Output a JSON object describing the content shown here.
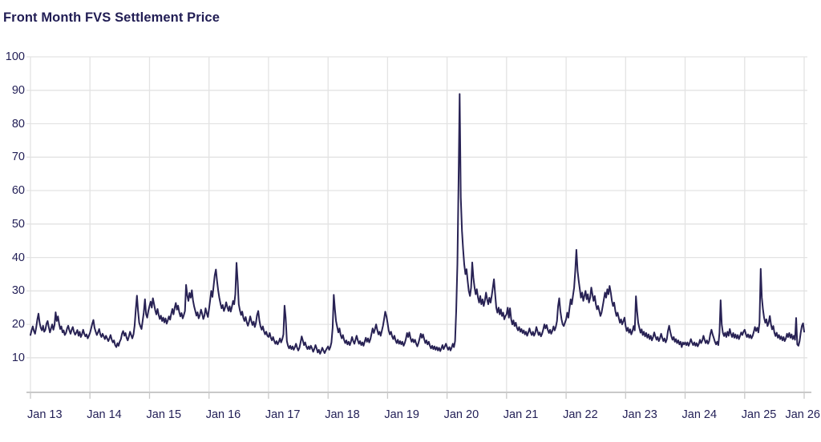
{
  "title": "Front Month FVS Settlement Price",
  "colors": {
    "line": "#282254",
    "text": "#232057",
    "title_text": "#211d54",
    "grid": "#e3e3e3",
    "axis": "#c9c9c9",
    "background": "#ffffff"
  },
  "chart_data": {
    "type": "line",
    "title": "Front Month FVS Settlement Price",
    "xlabel": "",
    "ylabel": "",
    "x_start": "Jan 2013",
    "x_end": "Jan 2026",
    "sampling": "weekly",
    "x_tick_labels": [
      "Jan 13",
      "Jan 14",
      "Jan 15",
      "Jan 16",
      "Jan 17",
      "Jan 18",
      "Jan 19",
      "Jan 20",
      "Jan 21",
      "Jan 22",
      "Jan 23",
      "Jan 24",
      "Jan 25",
      "Jan 26"
    ],
    "y_ticks": [
      10,
      20,
      30,
      40,
      50,
      60,
      70,
      80,
      90,
      100
    ],
    "ylim": [
      0,
      100
    ],
    "grid": true,
    "legend": "none",
    "notable_points": [
      {
        "date": "Oct 2014",
        "value": 28.6
      },
      {
        "date": "Aug 2015",
        "value": 31.8
      },
      {
        "date": "Feb 2016",
        "value": 36.4
      },
      {
        "date": "Jun 2016 (Brexit)",
        "value": 38.4
      },
      {
        "date": "Apr 2017",
        "value": 25.6
      },
      {
        "date": "Feb 2018",
        "value": 28.8
      },
      {
        "date": "Mar 2020 (peak)",
        "value": 88.9
      },
      {
        "date": "Mar 2022",
        "value": 42.3
      },
      {
        "date": "Mar 2023",
        "value": 28.4
      },
      {
        "date": "Aug 2024",
        "value": 27.2
      },
      {
        "date": "Apr 2025",
        "value": 36.6
      }
    ],
    "series": [
      {
        "name": "Front Month FVS Settlement Price",
        "values": [
          16.8,
          18.2,
          19.4,
          18.0,
          17.2,
          19.0,
          21.5,
          23.2,
          20.5,
          19.0,
          18.2,
          19.6,
          17.8,
          18.4,
          20.2,
          21.0,
          19.2,
          17.6,
          18.8,
          20.0,
          18.4,
          19.8,
          23.6,
          21.0,
          22.4,
          20.2,
          18.6,
          19.4,
          17.6,
          18.2,
          16.8,
          17.4,
          18.8,
          19.6,
          18.2,
          17.2,
          18.4,
          19.2,
          17.8,
          16.9,
          17.5,
          18.3,
          16.6,
          17.8,
          16.2,
          17.0,
          18.4,
          17.2,
          16.4,
          17.0,
          15.8,
          16.6,
          17.4,
          18.8,
          20.2,
          21.3,
          19.0,
          17.8,
          16.8,
          17.6,
          18.6,
          17.0,
          16.2,
          17.2,
          16.4,
          15.6,
          16.6,
          15.8,
          15.0,
          15.8,
          16.8,
          15.4,
          14.6,
          15.2,
          13.8,
          13.2,
          14.4,
          13.6,
          14.8,
          15.6,
          17.2,
          18.0,
          16.6,
          17.4,
          16.0,
          15.2,
          16.4,
          17.8,
          16.8,
          15.8,
          17.0,
          19.6,
          24.2,
          28.6,
          24.0,
          20.5,
          19.5,
          18.6,
          21.0,
          23.5,
          27.5,
          23.0,
          22.0,
          24.0,
          25.5,
          26.8,
          25.0,
          27.8,
          26.0,
          24.2,
          23.0,
          24.6,
          22.8,
          21.6,
          22.6,
          21.0,
          22.0,
          20.6,
          21.8,
          20.2,
          21.2,
          22.4,
          21.4,
          23.2,
          24.6,
          23.0,
          25.0,
          26.4,
          24.4,
          25.6,
          23.6,
          22.4,
          23.4,
          21.8,
          22.8,
          24.0,
          31.8,
          28.6,
          27.0,
          29.4,
          28.0,
          30.2,
          27.2,
          25.4,
          24.0,
          22.6,
          23.6,
          21.8,
          22.8,
          24.4,
          23.2,
          21.6,
          22.6,
          24.8,
          23.4,
          22.2,
          24.6,
          27.2,
          30.0,
          28.2,
          31.4,
          34.6,
          36.4,
          33.0,
          30.2,
          28.0,
          26.2,
          24.8,
          25.8,
          24.0,
          25.0,
          26.6,
          25.2,
          24.0,
          25.4,
          23.8,
          25.2,
          27.0,
          26.0,
          29.0,
          38.4,
          33.0,
          26.0,
          24.2,
          22.8,
          23.8,
          22.0,
          21.0,
          22.2,
          20.6,
          19.6,
          20.8,
          22.4,
          21.0,
          19.8,
          20.8,
          19.2,
          20.4,
          22.8,
          24.0,
          21.2,
          19.4,
          18.4,
          19.4,
          18.0,
          17.0,
          17.8,
          16.6,
          16.2,
          17.4,
          16.0,
          15.2,
          16.2,
          15.0,
          14.2,
          15.0,
          14.0,
          14.8,
          15.8,
          14.6,
          15.6,
          17.0,
          25.6,
          22.0,
          15.0,
          13.6,
          12.8,
          13.6,
          12.6,
          13.4,
          12.4,
          13.2,
          14.2,
          13.0,
          12.2,
          13.0,
          14.6,
          16.4,
          15.2,
          13.8,
          14.6,
          13.4,
          12.6,
          13.4,
          12.6,
          13.6,
          12.8,
          11.8,
          12.6,
          13.8,
          12.8,
          11.6,
          12.4,
          11.2,
          12.0,
          13.0,
          12.2,
          11.4,
          12.2,
          12.8,
          13.4,
          12.4,
          13.2,
          14.6,
          19.0,
          28.8,
          24.6,
          21.0,
          19.2,
          17.6,
          18.8,
          16.8,
          15.8,
          16.8,
          15.4,
          14.4,
          15.2,
          14.0,
          14.8,
          13.8,
          14.8,
          16.2,
          15.0,
          14.2,
          15.4,
          16.6,
          15.2,
          14.2,
          15.0,
          13.8,
          14.6,
          13.6,
          14.8,
          16.0,
          14.8,
          15.8,
          14.6,
          15.6,
          17.2,
          18.8,
          17.4,
          18.6,
          20.0,
          18.4,
          17.0,
          17.8,
          16.6,
          18.0,
          19.6,
          21.6,
          23.8,
          22.4,
          20.4,
          18.2,
          17.0,
          17.8,
          16.4,
          15.6,
          16.6,
          15.2,
          14.4,
          15.4,
          14.2,
          15.0,
          14.0,
          14.8,
          13.6,
          14.4,
          15.6,
          17.4,
          16.2,
          17.6,
          16.0,
          14.8,
          15.6,
          14.6,
          15.4,
          14.2,
          13.4,
          14.4,
          15.8,
          17.2,
          16.0,
          17.0,
          15.6,
          14.4,
          15.2,
          14.0,
          14.8,
          13.6,
          12.8,
          13.6,
          12.6,
          13.4,
          12.4,
          13.2,
          12.2,
          13.0,
          12.0,
          12.8,
          13.8,
          12.6,
          13.4,
          14.2,
          13.2,
          12.4,
          13.2,
          12.2,
          13.0,
          14.2,
          13.2,
          15.0,
          24.0,
          38.0,
          62.0,
          88.9,
          58.0,
          48.0,
          42.5,
          38.0,
          35.0,
          36.5,
          33.0,
          30.0,
          28.5,
          31.0,
          38.5,
          34.0,
          31.0,
          29.0,
          30.5,
          28.0,
          26.5,
          28.5,
          26.0,
          27.5,
          25.5,
          27.0,
          29.5,
          27.5,
          26.0,
          28.0,
          26.5,
          28.5,
          31.0,
          33.5,
          29.0,
          25.0,
          23.5,
          25.0,
          23.0,
          24.5,
          22.5,
          23.5,
          21.5,
          22.5,
          23.0,
          25.0,
          22.0,
          24.8,
          21.5,
          20.0,
          21.2,
          19.5,
          20.5,
          19.0,
          18.2,
          19.2,
          17.8,
          18.6,
          17.4,
          18.2,
          17.0,
          17.8,
          16.6,
          17.6,
          18.8,
          17.6,
          16.8,
          17.8,
          16.6,
          17.4,
          19.2,
          18.0,
          16.8,
          17.6,
          16.4,
          17.2,
          18.4,
          20.0,
          18.8,
          19.8,
          18.4,
          17.4,
          18.4,
          17.2,
          18.0,
          19.4,
          18.2,
          19.2,
          21.0,
          25.5,
          27.8,
          24.0,
          21.5,
          20.0,
          19.5,
          20.5,
          21.5,
          23.5,
          22.0,
          25.0,
          27.5,
          26.0,
          28.5,
          31.0,
          36.0,
          42.3,
          36.0,
          33.0,
          30.5,
          28.0,
          29.5,
          27.0,
          28.5,
          30.0,
          27.5,
          29.0,
          26.5,
          28.0,
          31.0,
          29.0,
          27.0,
          28.5,
          26.0,
          24.5,
          25.5,
          24.0,
          22.5,
          23.5,
          25.5,
          27.5,
          29.5,
          28.0,
          30.5,
          29.0,
          31.5,
          29.5,
          27.0,
          25.5,
          26.5,
          24.0,
          22.5,
          23.5,
          22.0,
          20.5,
          21.5,
          20.0,
          21.0,
          22.0,
          19.5,
          18.0,
          19.0,
          17.5,
          18.5,
          17.0,
          18.0,
          19.5,
          18.2,
          28.4,
          24.0,
          20.5,
          19.0,
          17.5,
          18.5,
          16.8,
          17.8,
          16.4,
          17.4,
          16.0,
          17.0,
          15.6,
          16.6,
          15.2,
          16.2,
          17.6,
          16.4,
          15.4,
          16.2,
          15.0,
          15.8,
          17.2,
          16.0,
          15.0,
          15.8,
          14.6,
          15.6,
          18.0,
          19.6,
          17.8,
          16.4,
          15.4,
          16.2,
          14.8,
          15.6,
          14.4,
          15.2,
          14.0,
          14.8,
          13.2,
          14.6,
          14.0,
          14.6,
          13.8,
          14.6,
          13.6,
          14.4,
          15.6,
          14.6,
          13.8,
          14.6,
          13.6,
          14.4,
          13.4,
          14.2,
          15.4,
          14.4,
          15.2,
          16.6,
          15.4,
          14.4,
          15.2,
          14.2,
          15.0,
          17.0,
          18.4,
          17.0,
          16.0,
          14.8,
          14.0,
          14.8,
          13.8,
          17.5,
          27.2,
          20.0,
          17.5,
          16.5,
          17.5,
          16.2,
          17.8,
          16.6,
          18.6,
          17.2,
          16.2,
          17.4,
          16.0,
          17.0,
          15.8,
          16.8,
          15.6,
          16.6,
          17.6,
          16.8,
          17.8,
          18.4,
          17.2,
          16.2,
          17.0,
          16.0,
          16.8,
          15.8,
          16.6,
          17.8,
          19.2,
          18.0,
          19.0,
          17.6,
          20.5,
          36.6,
          28.0,
          24.5,
          22.0,
          20.5,
          21.5,
          19.5,
          20.5,
          22.5,
          20.0,
          18.5,
          19.5,
          17.5,
          16.5,
          17.5,
          16.0,
          16.8,
          15.6,
          16.4,
          15.2,
          16.2,
          15.0,
          15.8,
          17.2,
          16.2,
          17.4,
          16.0,
          17.0,
          15.6,
          16.6,
          15.4,
          21.9,
          14.0,
          13.6,
          15.0,
          17.5,
          19.5,
          20.3,
          17.8
        ]
      }
    ]
  }
}
